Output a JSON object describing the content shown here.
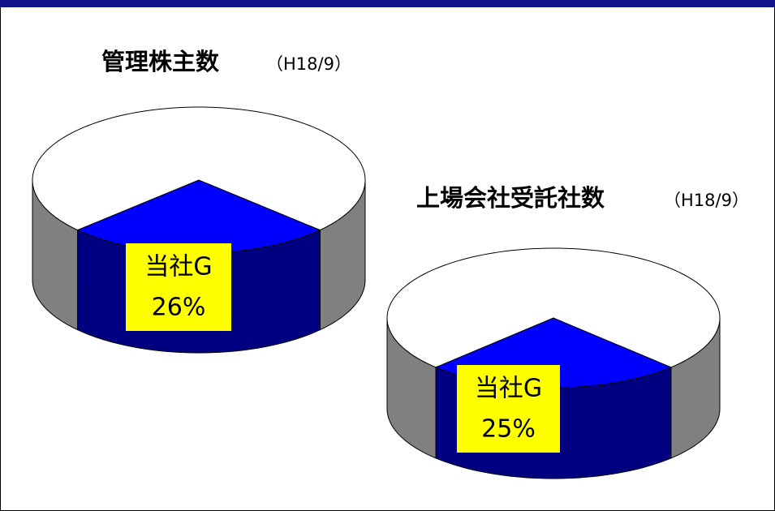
{
  "chart_data": [
    {
      "type": "pie3d",
      "title": "管理株主数",
      "subtitle": "（H18/9）",
      "categories": [
        "当社G",
        null
      ],
      "values": [
        26,
        74
      ],
      "value_labels": [
        "26%",
        null
      ],
      "colors": [
        "#0000ff",
        "#ffffff"
      ],
      "side_colors": [
        "#000080",
        "#808080"
      ]
    },
    {
      "type": "pie3d",
      "title": "上場会社受託社数",
      "subtitle": "（H18/9）",
      "categories": [
        "当社G",
        null
      ],
      "values": [
        25,
        75
      ],
      "value_labels": [
        "25%",
        null
      ],
      "colors": [
        "#0000ff",
        "#ffffff"
      ],
      "side_colors": [
        "#000080",
        "#808080"
      ]
    }
  ]
}
